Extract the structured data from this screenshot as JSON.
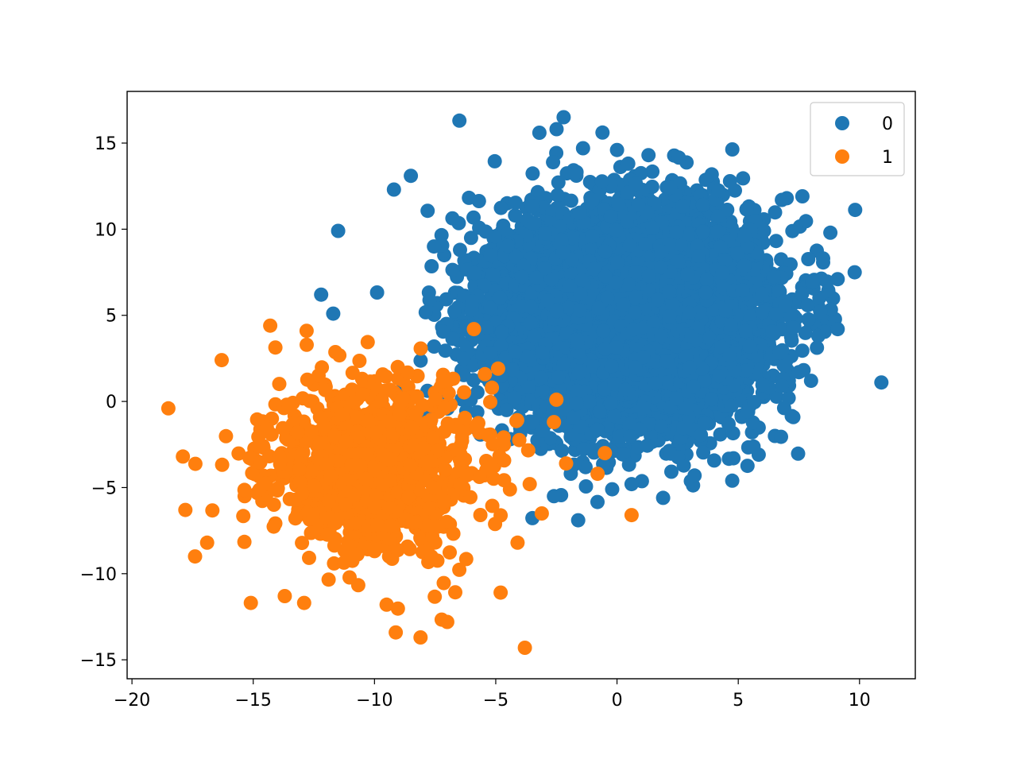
{
  "chart_data": {
    "type": "scatter",
    "title": "",
    "xlabel": "",
    "ylabel": "",
    "xlim": [
      -20.2,
      12.3
    ],
    "ylim": [
      -16.1,
      18.0
    ],
    "grid": false,
    "legend_position": "top-right",
    "x_ticks": [
      -20,
      -15,
      -10,
      -5,
      0,
      5,
      10
    ],
    "x_tick_labels": [
      "−20",
      "−15",
      "−10",
      "−5",
      "0",
      "5",
      "10"
    ],
    "y_ticks": [
      -15,
      -10,
      -5,
      0,
      5,
      10,
      15
    ],
    "y_tick_labels": [
      "−15",
      "−10",
      "−5",
      "0",
      "5",
      "10",
      "15"
    ],
    "series": [
      {
        "name": "0",
        "color": "#1f77b4",
        "center": [
          0.5,
          5.0
        ],
        "spread": [
          3.3,
          3.6
        ],
        "approx_point_count": 9900,
        "outliers": [
          [
            -6.5,
            16.3
          ],
          [
            -2.2,
            16.5
          ],
          [
            -3.2,
            15.6
          ],
          [
            0,
            14.6
          ],
          [
            1.3,
            14.3
          ],
          [
            -1.4,
            14.7
          ],
          [
            -9.2,
            12.3
          ],
          [
            -8.5,
            13.1
          ],
          [
            -11.5,
            9.9
          ],
          [
            -12.2,
            6.2
          ],
          [
            7.0,
            11.8
          ],
          [
            6.8,
            11.7
          ],
          [
            9.8,
            7.5
          ],
          [
            9.1,
            7.1
          ],
          [
            8.5,
            8.3
          ],
          [
            10.9,
            1.1
          ],
          [
            9.1,
            4.2
          ],
          [
            8.3,
            3.8
          ],
          [
            8.0,
            1.2
          ],
          [
            7.5,
            1.7
          ],
          [
            6.8,
            0.9
          ],
          [
            -1.6,
            -6.9
          ],
          [
            -0.2,
            -5.1
          ],
          [
            1.9,
            -5.6
          ],
          [
            3.2,
            -4.3
          ],
          [
            4.8,
            -3.3
          ],
          [
            -2.6,
            -5.5
          ],
          [
            0.6,
            -4.8
          ],
          [
            -11.7,
            5.1
          ]
        ]
      },
      {
        "name": "1",
        "color": "#ff7f0e",
        "center": [
          -10.0,
          -3.8
        ],
        "spread": [
          2.7,
          3.1
        ],
        "approx_point_count": 1100,
        "outliers": [
          [
            -18.5,
            -0.4
          ],
          [
            -17.9,
            -3.2
          ],
          [
            -17.8,
            -6.3
          ],
          [
            -17.4,
            -9.0
          ],
          [
            -16.9,
            -8.2
          ],
          [
            -16.3,
            2.4
          ],
          [
            -14.3,
            4.4
          ],
          [
            -12.8,
            4.1
          ],
          [
            -15.1,
            -11.7
          ],
          [
            -13.7,
            -11.3
          ],
          [
            -12.9,
            -11.7
          ],
          [
            -9.5,
            -11.8
          ],
          [
            -8.1,
            -13.7
          ],
          [
            -7.0,
            -12.8
          ],
          [
            -3.8,
            -14.3
          ],
          [
            -4.8,
            -11.1
          ],
          [
            -4.1,
            -8.2
          ],
          [
            -5.9,
            4.2
          ],
          [
            -2.5,
            0.1
          ],
          [
            -2.6,
            -1.2
          ],
          [
            -2.1,
            -3.6
          ],
          [
            -0.5,
            -3.0
          ],
          [
            -0.8,
            -4.2
          ],
          [
            0.6,
            -6.6
          ],
          [
            -3.6,
            -4.8
          ],
          [
            -3.1,
            -6.5
          ]
        ]
      }
    ]
  }
}
